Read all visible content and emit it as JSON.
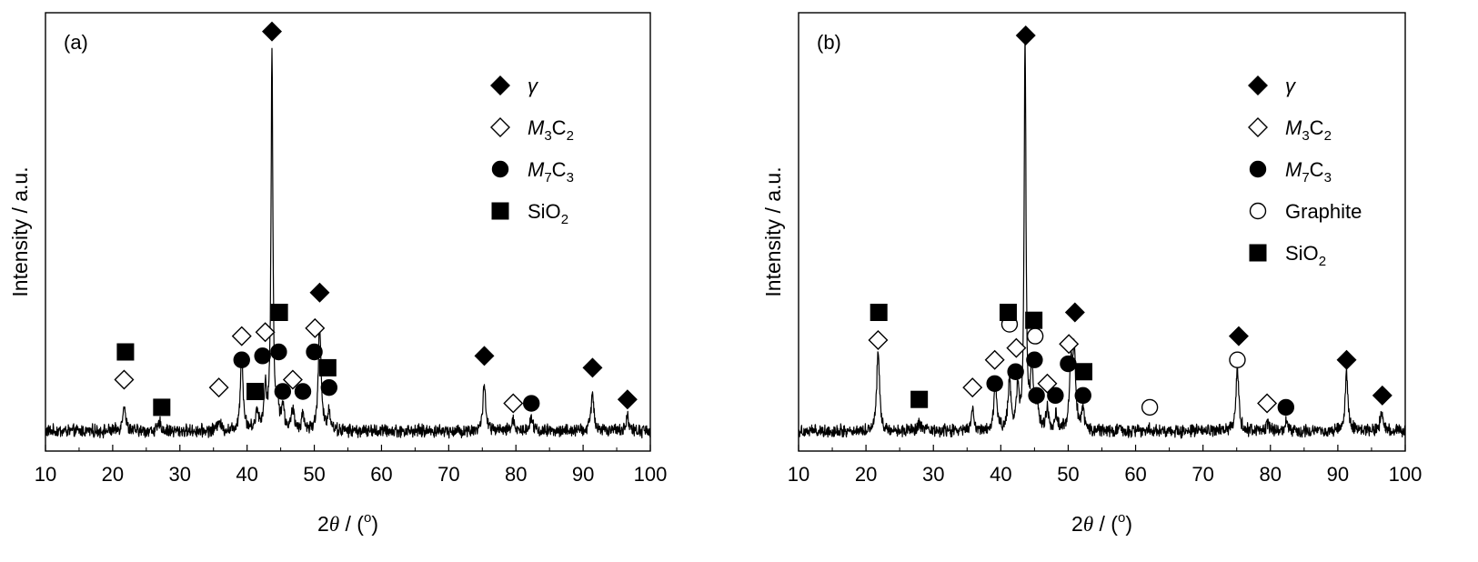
{
  "figure": {
    "panels": [
      {
        "id": "a",
        "panel_label": "(a)",
        "ylabel": "Intensity / a.u.",
        "xlabel_prefix": "2",
        "xlabel_theta": "θ",
        "xlabel_unit_open": " / (",
        "xlabel_degree": "o",
        "xlabel_unit_close": ")",
        "legend": [
          {
            "marker": "diamond-filled",
            "label": "γ",
            "italic": true
          },
          {
            "marker": "diamond-open",
            "label_main": "M",
            "sub1": "3",
            "label_mid": "C",
            "sub2": "2"
          },
          {
            "marker": "circle-filled",
            "label_main": "M",
            "sub1": "7",
            "label_mid": "C",
            "sub2": "3"
          },
          {
            "marker": "square-filled",
            "label_plain": "SiO",
            "sub2": "2"
          }
        ]
      },
      {
        "id": "b",
        "panel_label": "(b)",
        "ylabel": "Intensity / a.u.",
        "xlabel_prefix": "2",
        "xlabel_theta": "θ",
        "xlabel_unit_open": " / (",
        "xlabel_degree": "o",
        "xlabel_unit_close": ")",
        "legend": [
          {
            "marker": "diamond-filled",
            "label": "γ",
            "italic": true
          },
          {
            "marker": "diamond-open",
            "label_main": "M",
            "sub1": "3",
            "label_mid": "C",
            "sub2": "2"
          },
          {
            "marker": "circle-filled",
            "label_main": "M",
            "sub1": "7",
            "label_mid": "C",
            "sub2": "3"
          },
          {
            "marker": "circle-open",
            "label_plain": "Graphite"
          },
          {
            "marker": "square-filled",
            "label_plain": "SiO",
            "sub2": "2"
          }
        ]
      }
    ]
  },
  "chart_data": [
    {
      "type": "line",
      "panel": "(a)",
      "xlabel": "2θ / (°)",
      "ylabel": "Intensity / a.u.",
      "xlim": [
        10,
        100
      ],
      "xticks": [
        10,
        20,
        30,
        40,
        50,
        60,
        70,
        80,
        90,
        100
      ],
      "ylim": [
        0,
        100
      ],
      "y_ticks_shown": false,
      "legend_position": "top-right",
      "peaks": [
        {
          "x": 21.7,
          "h": 7
        },
        {
          "x": 27.0,
          "h": 2
        },
        {
          "x": 35.8,
          "h": 3
        },
        {
          "x": 39.2,
          "h": 19
        },
        {
          "x": 41.5,
          "h": 5
        },
        {
          "x": 42.7,
          "h": 10
        },
        {
          "x": 43.7,
          "h": 96
        },
        {
          "x": 44.5,
          "h": 6
        },
        {
          "x": 45.3,
          "h": 6
        },
        {
          "x": 46.8,
          "h": 5
        },
        {
          "x": 48.3,
          "h": 4
        },
        {
          "x": 50.8,
          "h": 27
        },
        {
          "x": 52.2,
          "h": 5
        },
        {
          "x": 75.3,
          "h": 12
        },
        {
          "x": 79.6,
          "h": 3
        },
        {
          "x": 82.3,
          "h": 4
        },
        {
          "x": 91.4,
          "h": 10
        },
        {
          "x": 96.6,
          "h": 4
        }
      ],
      "markers": [
        {
          "type": "diamond-filled",
          "x": 43.7,
          "y": 101
        },
        {
          "type": "diamond-filled",
          "x": 50.8,
          "y": 35
        },
        {
          "type": "diamond-filled",
          "x": 75.3,
          "y": 19
        },
        {
          "type": "diamond-filled",
          "x": 91.4,
          "y": 16
        },
        {
          "type": "diamond-filled",
          "x": 96.6,
          "y": 8
        },
        {
          "type": "diamond-open",
          "x": 21.7,
          "y": 13
        },
        {
          "type": "diamond-open",
          "x": 35.8,
          "y": 11
        },
        {
          "type": "diamond-open",
          "x": 39.2,
          "y": 24
        },
        {
          "type": "diamond-open",
          "x": 42.7,
          "y": 25
        },
        {
          "type": "diamond-open",
          "x": 46.8,
          "y": 13
        },
        {
          "type": "diamond-open",
          "x": 50.1,
          "y": 26
        },
        {
          "type": "diamond-open",
          "x": 79.6,
          "y": 7
        },
        {
          "type": "circle-filled",
          "x": 39.2,
          "y": 18
        },
        {
          "type": "circle-filled",
          "x": 42.3,
          "y": 19
        },
        {
          "type": "circle-filled",
          "x": 44.7,
          "y": 20
        },
        {
          "type": "circle-filled",
          "x": 45.3,
          "y": 10
        },
        {
          "type": "circle-filled",
          "x": 48.3,
          "y": 10
        },
        {
          "type": "circle-filled",
          "x": 50.0,
          "y": 20
        },
        {
          "type": "circle-filled",
          "x": 52.2,
          "y": 11
        },
        {
          "type": "circle-filled",
          "x": 82.3,
          "y": 7
        },
        {
          "type": "square-filled",
          "x": 21.9,
          "y": 20
        },
        {
          "type": "square-filled",
          "x": 27.3,
          "y": 6
        },
        {
          "type": "square-filled",
          "x": 41.2,
          "y": 10
        },
        {
          "type": "square-filled",
          "x": 44.8,
          "y": 30
        },
        {
          "type": "square-filled",
          "x": 52.0,
          "y": 16
        }
      ]
    },
    {
      "type": "line",
      "panel": "(b)",
      "xlabel": "2θ / (°)",
      "ylabel": "Intensity / a.u.",
      "xlim": [
        10,
        100
      ],
      "xticks": [
        10,
        20,
        30,
        40,
        50,
        60,
        70,
        80,
        90,
        100
      ],
      "ylim": [
        0,
        100
      ],
      "y_ticks_shown": false,
      "legend_position": "top-right",
      "peaks": [
        {
          "x": 21.8,
          "h": 21
        },
        {
          "x": 27.9,
          "h": 2
        },
        {
          "x": 35.8,
          "h": 5
        },
        {
          "x": 39.2,
          "h": 12
        },
        {
          "x": 41.3,
          "h": 13
        },
        {
          "x": 42.5,
          "h": 10
        },
        {
          "x": 43.6,
          "h": 98
        },
        {
          "x": 44.6,
          "h": 15
        },
        {
          "x": 45.4,
          "h": 6
        },
        {
          "x": 46.9,
          "h": 5
        },
        {
          "x": 48.2,
          "h": 4
        },
        {
          "x": 50.4,
          "h": 16
        },
        {
          "x": 50.9,
          "h": 20
        },
        {
          "x": 52.2,
          "h": 5
        },
        {
          "x": 62.0,
          "h": 1
        },
        {
          "x": 75.1,
          "h": 16
        },
        {
          "x": 79.6,
          "h": 2
        },
        {
          "x": 82.4,
          "h": 3
        },
        {
          "x": 91.3,
          "h": 15
        },
        {
          "x": 96.5,
          "h": 5
        }
      ],
      "markers": [
        {
          "type": "diamond-filled",
          "x": 43.7,
          "y": 100
        },
        {
          "type": "diamond-filled",
          "x": 51.0,
          "y": 30
        },
        {
          "type": "diamond-filled",
          "x": 75.3,
          "y": 24
        },
        {
          "type": "diamond-filled",
          "x": 91.3,
          "y": 18
        },
        {
          "type": "diamond-filled",
          "x": 96.6,
          "y": 9
        },
        {
          "type": "diamond-open",
          "x": 21.8,
          "y": 23
        },
        {
          "type": "diamond-open",
          "x": 35.8,
          "y": 11
        },
        {
          "type": "diamond-open",
          "x": 39.1,
          "y": 18
        },
        {
          "type": "diamond-open",
          "x": 42.3,
          "y": 21
        },
        {
          "type": "diamond-open",
          "x": 46.9,
          "y": 12
        },
        {
          "type": "diamond-open",
          "x": 50.1,
          "y": 22
        },
        {
          "type": "diamond-open",
          "x": 79.5,
          "y": 7
        },
        {
          "type": "circle-filled",
          "x": 39.1,
          "y": 12
        },
        {
          "type": "circle-filled",
          "x": 42.2,
          "y": 15
        },
        {
          "type": "circle-filled",
          "x": 45.0,
          "y": 18
        },
        {
          "type": "circle-filled",
          "x": 45.3,
          "y": 9
        },
        {
          "type": "circle-filled",
          "x": 48.1,
          "y": 9
        },
        {
          "type": "circle-filled",
          "x": 50.0,
          "y": 17
        },
        {
          "type": "circle-filled",
          "x": 52.2,
          "y": 9
        },
        {
          "type": "circle-filled",
          "x": 82.3,
          "y": 6
        },
        {
          "type": "circle-open",
          "x": 41.3,
          "y": 27
        },
        {
          "type": "circle-open",
          "x": 45.1,
          "y": 24
        },
        {
          "type": "circle-open",
          "x": 62.1,
          "y": 6
        },
        {
          "type": "circle-open",
          "x": 75.1,
          "y": 18
        },
        {
          "type": "square-filled",
          "x": 21.9,
          "y": 30
        },
        {
          "type": "square-filled",
          "x": 27.9,
          "y": 8
        },
        {
          "type": "square-filled",
          "x": 41.1,
          "y": 30
        },
        {
          "type": "square-filled",
          "x": 44.9,
          "y": 28
        },
        {
          "type": "square-filled",
          "x": 52.3,
          "y": 15
        }
      ]
    }
  ]
}
